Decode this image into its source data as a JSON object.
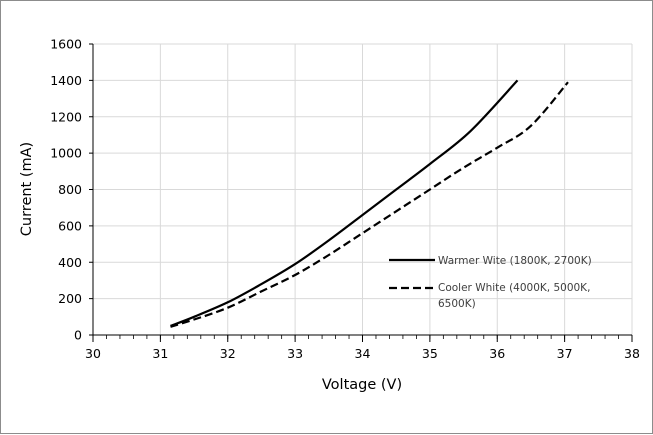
{
  "chart_data": {
    "type": "line",
    "xlabel": "Voltage (V)",
    "ylabel": "Current (mA)",
    "xlim": [
      30,
      38
    ],
    "ylim": [
      0,
      1600
    ],
    "x_ticks": [
      30,
      31,
      32,
      33,
      34,
      35,
      36,
      37,
      38
    ],
    "y_ticks": [
      0,
      200,
      400,
      600,
      800,
      1000,
      1200,
      1400,
      1600
    ],
    "x_minor_step": 0.2,
    "grid": "major vertical and horizontal",
    "legend_position": "right",
    "series": [
      {
        "name": "Warmer Wite (1800K, 2700K)",
        "style": "solid",
        "color": "#000000",
        "points": [
          [
            31.15,
            50
          ],
          [
            31.5,
            100
          ],
          [
            32.0,
            180
          ],
          [
            32.5,
            280
          ],
          [
            33.0,
            390
          ],
          [
            33.5,
            520
          ],
          [
            34.0,
            660
          ],
          [
            34.5,
            800
          ],
          [
            35.0,
            940
          ],
          [
            35.6,
            1120
          ],
          [
            36.3,
            1400
          ]
        ]
      },
      {
        "name": "Cooler White (4000K, 5000K, 6500K)",
        "style": "dashed",
        "color": "#000000",
        "points": [
          [
            31.15,
            45
          ],
          [
            31.5,
            85
          ],
          [
            32.0,
            150
          ],
          [
            32.5,
            240
          ],
          [
            33.0,
            330
          ],
          [
            33.5,
            440
          ],
          [
            34.0,
            560
          ],
          [
            34.5,
            680
          ],
          [
            35.0,
            800
          ],
          [
            35.5,
            920
          ],
          [
            36.0,
            1030
          ],
          [
            36.5,
            1150
          ],
          [
            37.05,
            1390
          ]
        ]
      }
    ]
  }
}
